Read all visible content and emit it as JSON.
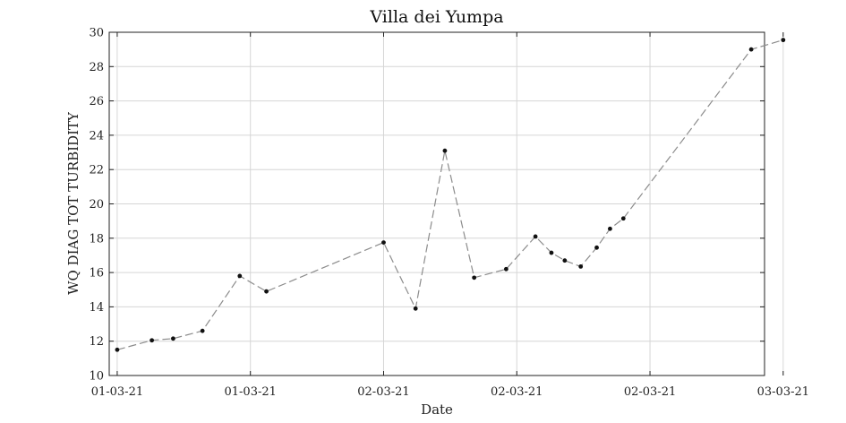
{
  "chart_data": {
    "type": "line",
    "title": "Villa dei Yumpa",
    "xlabel": "Date",
    "ylabel": "WQ DIAG TOT TURBIDITY",
    "ylim": [
      10,
      30
    ],
    "yticks": [
      10,
      12,
      14,
      16,
      18,
      20,
      22,
      24,
      26,
      28,
      30
    ],
    "xlim": [
      -0.3,
      24.3
    ],
    "xticks": [
      {
        "x": 0,
        "label": "01-03-21"
      },
      {
        "x": 5,
        "label": "01-03-21"
      },
      {
        "x": 10,
        "label": "02-03-21"
      },
      {
        "x": 15,
        "label": "02-03-21"
      },
      {
        "x": 20,
        "label": "02-03-21"
      },
      {
        "x": 25,
        "label": "03-03-21"
      }
    ],
    "grid": true,
    "series": [
      {
        "line_style": "dashed",
        "marker": "dot",
        "color": "#8c8c8c",
        "marker_color": "#111111",
        "points": [
          {
            "x": 0.0,
            "y": 11.5
          },
          {
            "x": 1.3,
            "y": 12.05
          },
          {
            "x": 2.1,
            "y": 12.15
          },
          {
            "x": 3.2,
            "y": 12.6
          },
          {
            "x": 4.6,
            "y": 15.8
          },
          {
            "x": 5.6,
            "y": 14.9
          },
          {
            "x": 10.0,
            "y": 17.75
          },
          {
            "x": 11.2,
            "y": 13.9
          },
          {
            "x": 12.3,
            "y": 23.1
          },
          {
            "x": 13.4,
            "y": 15.7
          },
          {
            "x": 14.6,
            "y": 16.2
          },
          {
            "x": 15.7,
            "y": 18.1
          },
          {
            "x": 16.3,
            "y": 17.15
          },
          {
            "x": 16.8,
            "y": 16.7
          },
          {
            "x": 17.4,
            "y": 16.35
          },
          {
            "x": 18.0,
            "y": 17.45
          },
          {
            "x": 18.5,
            "y": 18.55
          },
          {
            "x": 19.0,
            "y": 19.15
          },
          {
            "x": 23.8,
            "y": 29.0
          },
          {
            "x": 25.0,
            "y": 29.55
          }
        ]
      }
    ]
  }
}
